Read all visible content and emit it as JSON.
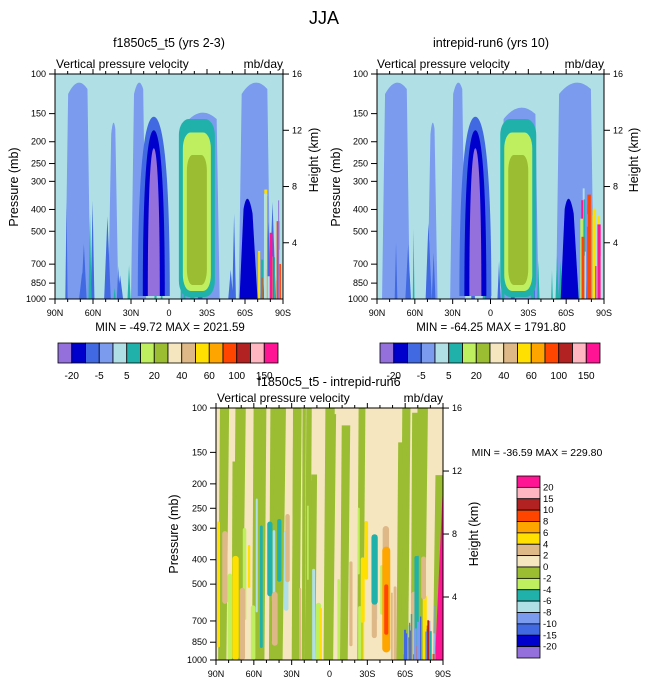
{
  "page_title": "JJA",
  "palette": [
    "#9370DB",
    "#0000CD",
    "#4169E1",
    "#7B9BEF",
    "#B0E0E6",
    "#20B2AA",
    "#BFEF5F",
    "#9ABD32",
    "#F5E6C0",
    "#DEB887",
    "#FFE000",
    "#FFA500",
    "#FF4500",
    "#B22222",
    "#FFB6C1",
    "#FF1493"
  ],
  "chart_data": [
    {
      "type": "heatmap",
      "panel": "top-left",
      "title": "f1850c5_t5 (yrs 2-3)",
      "left_string": "Vertical pressure velocity",
      "right_string": "mb/day",
      "xlabel": "",
      "ylabel": "Pressure (mb)",
      "ylabel_right": "Height (km)",
      "x_ticks": [
        "90N",
        "60N",
        "30N",
        "0",
        "30S",
        "60S",
        "90S"
      ],
      "x_range": [
        90,
        -90
      ],
      "y_ticks": [
        "100",
        "150",
        "200",
        "250",
        "300",
        "400",
        "500",
        "700",
        "850",
        "1000"
      ],
      "y_range": [
        100,
        1000
      ],
      "y_scale": "log",
      "y_right_ticks": [
        "16",
        "12",
        "8",
        "4"
      ],
      "stats": "MIN = -49.72  MAX = 2021.59",
      "colorbar": {
        "orientation": "horizontal",
        "labels": [
          "-20",
          "-5",
          "5",
          "20",
          "40",
          "60",
          "100",
          "150"
        ],
        "levels": [
          -20,
          -15,
          -10,
          -5,
          0,
          5,
          10,
          15,
          20,
          30,
          40,
          50,
          60,
          80,
          100,
          150
        ]
      },
      "features": [
        {
          "desc": "strong ascent core (min)",
          "lat": 12,
          "p_top": 210,
          "p_bottom": 950,
          "value_class": 0
        },
        {
          "desc": "subsidence core (max)",
          "lat": -22,
          "p_top": 230,
          "p_bottom": 950,
          "value_class": 7
        }
      ]
    },
    {
      "type": "heatmap",
      "panel": "top-right",
      "title": "intrepid-run6 (yrs 10)",
      "left_string": "Vertical pressure velocity",
      "right_string": "mb/day",
      "xlabel": "",
      "ylabel": "Pressure (mb)",
      "ylabel_right": "Height (km)",
      "x_ticks": [
        "90N",
        "60N",
        "30N",
        "0",
        "30S",
        "60S",
        "90S"
      ],
      "x_range": [
        90,
        -90
      ],
      "y_ticks": [
        "100",
        "150",
        "200",
        "250",
        "300",
        "400",
        "500",
        "700",
        "850",
        "1000"
      ],
      "y_range": [
        100,
        1000
      ],
      "y_scale": "log",
      "y_right_ticks": [
        "16",
        "12",
        "8",
        "4"
      ],
      "stats": "MIN = -64.25  MAX = 1791.80",
      "colorbar": {
        "orientation": "horizontal",
        "labels": [
          "-20",
          "-5",
          "5",
          "20",
          "40",
          "60",
          "100",
          "150"
        ],
        "levels": [
          -20,
          -15,
          -10,
          -5,
          0,
          5,
          10,
          15,
          20,
          30,
          40,
          50,
          60,
          80,
          100,
          150
        ]
      },
      "features": [
        {
          "desc": "strong ascent core (min)",
          "lat": 12,
          "p_top": 200,
          "p_bottom": 950,
          "value_class": 0
        },
        {
          "desc": "subsidence core (max)",
          "lat": -22,
          "p_top": 230,
          "p_bottom": 950,
          "value_class": 7
        }
      ]
    },
    {
      "type": "heatmap",
      "panel": "bottom",
      "title": "f1850c5_t5 - intrepid-run6",
      "left_string": "Vertical pressure velocity",
      "right_string": "mb/day",
      "xlabel": "",
      "ylabel": "Pressure (mb)",
      "ylabel_right": "Height (km)",
      "x_ticks": [
        "90N",
        "60N",
        "30N",
        "0",
        "30S",
        "60S",
        "90S"
      ],
      "x_range": [
        90,
        -90
      ],
      "y_ticks": [
        "100",
        "150",
        "200",
        "250",
        "300",
        "400",
        "500",
        "700",
        "850",
        "1000"
      ],
      "y_range": [
        100,
        1000
      ],
      "y_scale": "log",
      "y_right_ticks": [
        "16",
        "12",
        "8",
        "4"
      ],
      "stats": "MIN = -36.59  MAX = 229.80",
      "colorbar": {
        "orientation": "vertical",
        "labels": [
          "20",
          "15",
          "10",
          "8",
          "6",
          "4",
          "2",
          "0",
          "-2",
          "-4",
          "-6",
          "-8",
          "-10",
          "-15",
          "-20"
        ],
        "levels": [
          -20,
          -15,
          -10,
          -8,
          -6,
          -4,
          -2,
          0,
          2,
          4,
          6,
          8,
          10,
          15,
          20
        ]
      }
    }
  ]
}
